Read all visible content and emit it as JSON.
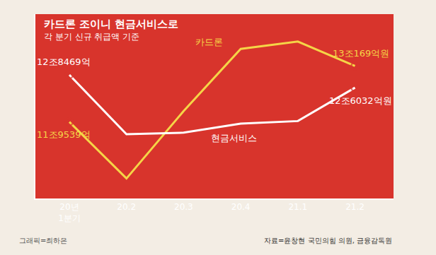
{
  "chart_data": {
    "type": "line",
    "title": "카드론 조이니 현금서비스로",
    "subtitle": "각 분기 신규 취급액 기준",
    "source": "자료=윤창현 국민의힘 의원, 금융감독원",
    "credit": "그래픽=최하은",
    "categories": [
      "20년 1분기",
      "20.2",
      "20.3",
      "20.4",
      "21.1",
      "21.2"
    ],
    "series": [
      {
        "name": "카드론",
        "color": "#f5d547",
        "marker": "circle-open",
        "line_style": "solid",
        "values": [
          119539,
          108800,
          121600,
          133400,
          134800,
          130169
        ],
        "value_labels": [
          "11조9539억",
          null,
          null,
          null,
          null,
          "13조169억원"
        ]
      },
      {
        "name": "현금서비스",
        "color": "#ffffff",
        "marker": "circle-open",
        "line_style": "solid",
        "values": [
          128469,
          117200,
          117500,
          119200,
          119700,
          126032
        ],
        "value_labels": [
          "12조8469억",
          null,
          null,
          null,
          null,
          "12조6032억원"
        ]
      }
    ],
    "ylim": [
      105000,
      140000
    ],
    "tick_labels": "x",
    "grid": false
  }
}
